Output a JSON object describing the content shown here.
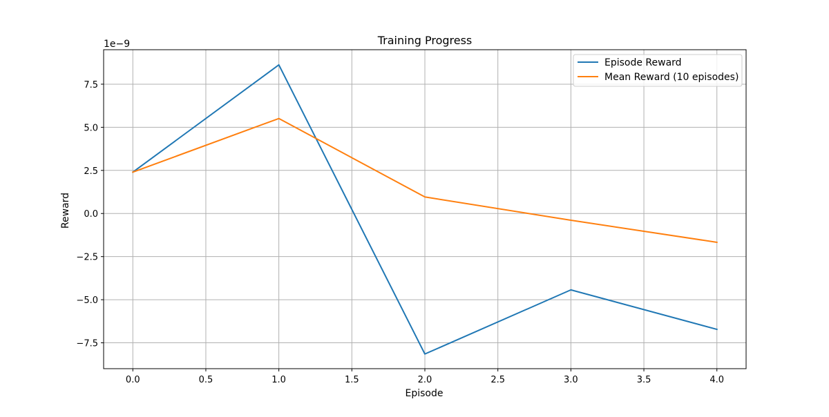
{
  "chart_data": {
    "type": "line",
    "title": "Training Progress",
    "xlabel": "Episode",
    "ylabel": "Reward",
    "y_scale_factor_label": "1e−9",
    "y_scale_factor": 1e-09,
    "x": [
      0,
      1,
      2,
      3,
      4
    ],
    "series": [
      {
        "name": "Episode Reward",
        "color": "#1f77b4",
        "values": [
          2.4,
          8.62,
          -8.15,
          -4.43,
          -6.72
        ]
      },
      {
        "name": "Mean Reward (10 episodes)",
        "color": "#ff7f0e",
        "values": [
          2.4,
          5.51,
          0.96,
          -0.39,
          -1.67
        ]
      }
    ],
    "xlim": [
      -0.2,
      4.2
    ],
    "ylim": [
      -9.0,
      9.5
    ],
    "x_ticks": [
      0.0,
      0.5,
      1.0,
      1.5,
      2.0,
      2.5,
      3.0,
      3.5,
      4.0
    ],
    "x_tick_labels": [
      "0.0",
      "0.5",
      "1.0",
      "1.5",
      "2.0",
      "2.5",
      "3.0",
      "3.5",
      "4.0"
    ],
    "y_ticks": [
      -7.5,
      -5.0,
      -2.5,
      0.0,
      2.5,
      5.0,
      7.5
    ],
    "y_tick_labels": [
      "−7.5",
      "−5.0",
      "−2.5",
      "0.0",
      "2.5",
      "5.0",
      "7.5"
    ],
    "grid": true,
    "legend_position": "top-right"
  }
}
